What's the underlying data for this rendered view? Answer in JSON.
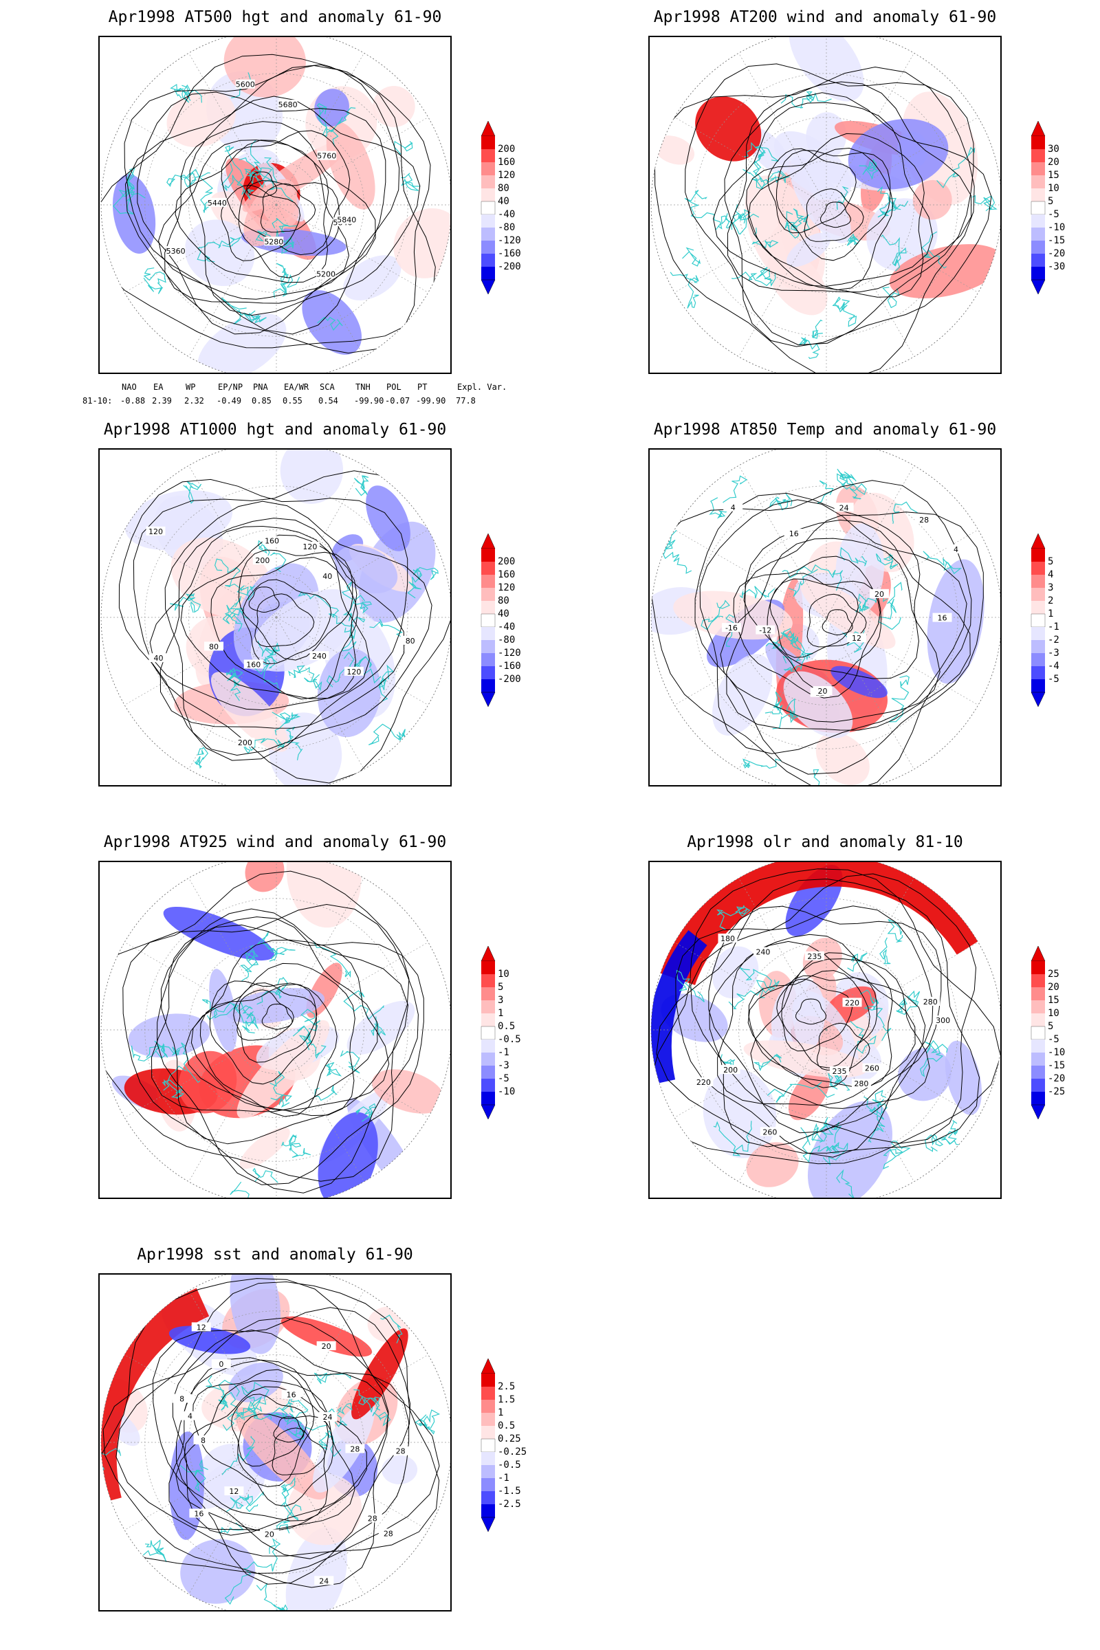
{
  "panels": [
    {
      "id": "p1",
      "title": "Apr1998 AT500 hgt and anomaly 61-90",
      "colorbar": [
        "200",
        "160",
        "120",
        "80",
        "40",
        "-40",
        "-80",
        "-120",
        "-160",
        "-200"
      ],
      "contour_labels": [
        "5840",
        "5200",
        "5280",
        "5360",
        "5440",
        "5600",
        "5680",
        "5760",
        "5840"
      ]
    },
    {
      "id": "p2",
      "title": "Apr1998 AT200 wind and anomaly 61-90",
      "colorbar": [
        "30",
        "20",
        "15",
        "10",
        "5",
        "-5",
        "-10",
        "-15",
        "-20",
        "-30"
      ],
      "contour_labels": []
    },
    {
      "id": "p3",
      "title": "Apr1998 AT1000 hgt and anomaly 61-90",
      "colorbar": [
        "200",
        "160",
        "120",
        "80",
        "40",
        "-40",
        "-80",
        "-120",
        "-160",
        "-200"
      ],
      "contour_labels": [
        "120",
        "240",
        "200",
        "160",
        "40",
        "80",
        "120",
        "160",
        "200",
        "120",
        "40",
        "80"
      ]
    },
    {
      "id": "p4",
      "title": "Apr1998 AT850 Temp and anomaly 61-90",
      "colorbar": [
        "5",
        "4",
        "3",
        "2",
        "1",
        "-1",
        "-2",
        "-3",
        "-4",
        "-5"
      ],
      "contour_labels": [
        "16",
        "12",
        "12",
        "20",
        "-16",
        "-12",
        "4",
        "16",
        "24",
        "28",
        "20",
        "4"
      ]
    },
    {
      "id": "p5",
      "title": "Apr1998 AT925 wind and anomaly 61-90",
      "colorbar": [
        "10",
        "5",
        "3",
        "1",
        "0.5",
        "-0.5",
        "-1",
        "-3",
        "-5",
        "-10"
      ],
      "contour_labels": []
    },
    {
      "id": "p6",
      "title": "Apr1998 olr and anomaly 81-10",
      "colorbar": [
        "25",
        "20",
        "15",
        "10",
        "5",
        "-5",
        "-10",
        "-15",
        "-20",
        "-25"
      ],
      "contour_labels": [
        "260",
        "280",
        "235",
        "260",
        "220",
        "200",
        "180",
        "240",
        "235",
        "220",
        "300",
        "280"
      ]
    },
    {
      "id": "p7",
      "title": "Apr1998 sst and anomaly 61-90",
      "colorbar": [
        "2.5",
        "1.5",
        "1",
        "0.5",
        "0.25",
        "-0.25",
        "-0.5",
        "-1",
        "-1.5",
        "-2.5"
      ],
      "contour_labels": [
        "28",
        "28",
        "24",
        "20",
        "16",
        "12",
        "8",
        "4",
        "0",
        "8",
        "12",
        "16",
        "20",
        "24",
        "28",
        "28"
      ]
    }
  ],
  "indices": {
    "headers": [
      "NAO",
      "EA",
      "WP",
      "EP/NP",
      "PNA",
      "EA/WR",
      "SCA",
      "TNH",
      "POL",
      "PT",
      "Expl. Var."
    ],
    "row_label": "81-10:",
    "values": [
      "-0.88",
      "2.39",
      "2.32",
      "-0.49",
      "0.85",
      "0.55",
      "0.54",
      "-99.90",
      "-0.07",
      "-99.90",
      "77.8"
    ]
  },
  "colors": {
    "positive_ramp": [
      "#ffe5e5",
      "#ffbdbd",
      "#ff8c8c",
      "#ff4d4d",
      "#e60000"
    ],
    "negative_ramp": [
      "#e6e6ff",
      "#bdbdff",
      "#8c8cff",
      "#4d4dff",
      "#0000e6"
    ],
    "coastline": "#33cccc",
    "contour": "#000000"
  }
}
